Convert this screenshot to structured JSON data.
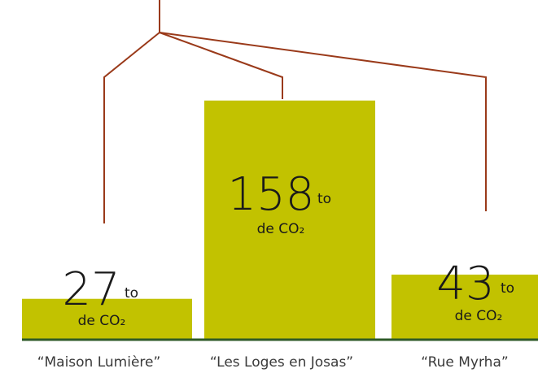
{
  "chart_data": {
    "type": "bar",
    "categories": [
      "“Maison Lumière”",
      "“Les Loges en Josas”",
      "“Rue Myrha”"
    ],
    "values": [
      27,
      158,
      43
    ],
    "unit": "to",
    "unit_line2": "de CO₂",
    "color": "#c2c200",
    "ylim": [
      0,
      160
    ]
  }
}
